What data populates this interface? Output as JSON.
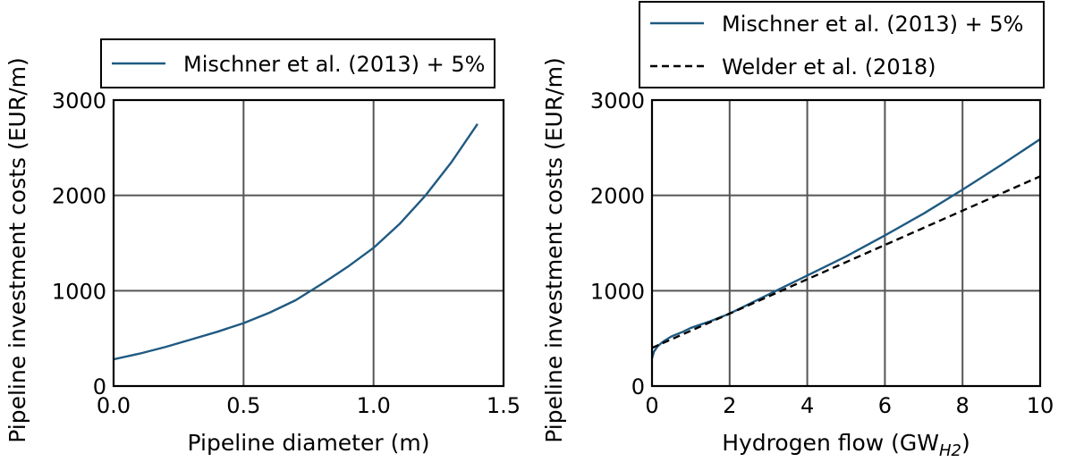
{
  "colors": {
    "mischner": "#1f5a82",
    "welder": "#000000",
    "grid": "#555555"
  },
  "chart_data": [
    {
      "type": "line",
      "xlabel": "Pipeline diameter (m)",
      "ylabel": "Pipeline investment costs (EUR/m)",
      "xlim": [
        0,
        1.5
      ],
      "ylim": [
        0,
        3000
      ],
      "xticks": [
        "0.0",
        "0.5",
        "1.0",
        "1.5"
      ],
      "yticks": [
        "0",
        "1000",
        "2000",
        "3000"
      ],
      "grid": true,
      "legend": {
        "position": "top",
        "entries": [
          "Mischner et al. (2013) + 5%"
        ]
      },
      "series": [
        {
          "name": "Mischner et al. (2013) + 5%",
          "style": "solid",
          "x": [
            0,
            0.1,
            0.2,
            0.3,
            0.4,
            0.5,
            0.6,
            0.7,
            0.8,
            0.9,
            1.0,
            1.1,
            1.2,
            1.3,
            1.4
          ],
          "y": [
            280,
            340,
            410,
            490,
            570,
            660,
            770,
            900,
            1070,
            1250,
            1450,
            1700,
            2000,
            2350,
            2750
          ]
        }
      ]
    },
    {
      "type": "line",
      "xlabel": "Hydrogen flow (GW",
      "xlabel_sub": "H2",
      "xlabel_end": ")",
      "ylabel": "Pipeline investment costs (EUR/m)",
      "xlim": [
        0,
        10
      ],
      "ylim": [
        0,
        3000
      ],
      "xticks": [
        "0",
        "2",
        "4",
        "6",
        "8",
        "10"
      ],
      "yticks": [
        "0",
        "1000",
        "2000",
        "3000"
      ],
      "grid": true,
      "legend": {
        "position": "top",
        "entries": [
          "Mischner et al. (2013) + 5%",
          "Welder et al. (2018)"
        ]
      },
      "series": [
        {
          "name": "Mischner et al. (2013) + 5%",
          "style": "solid",
          "x": [
            0,
            0.05,
            0.15,
            0.3,
            0.5,
            0.8,
            1,
            1.5,
            2,
            3,
            4,
            5,
            6,
            7,
            8,
            9,
            10
          ],
          "y": [
            290,
            360,
            420,
            470,
            520,
            570,
            610,
            680,
            760,
            960,
            1160,
            1360,
            1580,
            1810,
            2060,
            2320,
            2590
          ]
        },
        {
          "name": "Welder et al. (2018)",
          "style": "dashed",
          "x": [
            0,
            10
          ],
          "y": [
            400,
            2200
          ]
        }
      ]
    }
  ]
}
